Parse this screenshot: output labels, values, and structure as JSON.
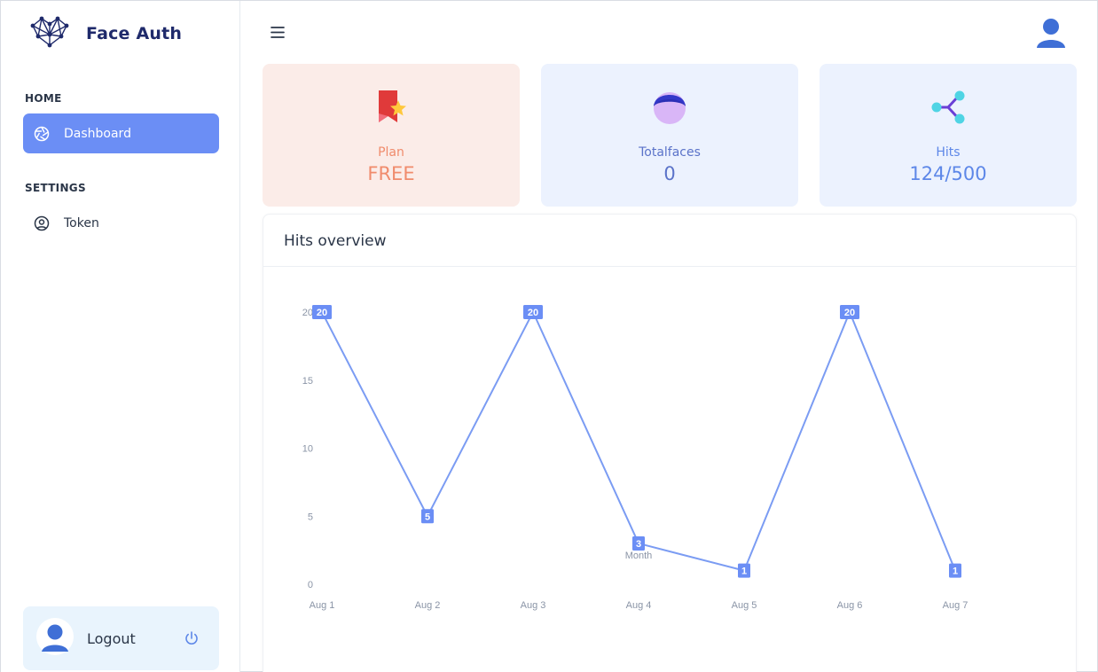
{
  "brand": {
    "name": "Face Auth"
  },
  "sidebar": {
    "sections": [
      {
        "caption": "HOME",
        "items": [
          {
            "label": "Dashboard",
            "icon": "aperture-icon",
            "active": true
          }
        ]
      },
      {
        "caption": "SETTINGS",
        "items": [
          {
            "label": "Token",
            "icon": "user-circle-icon",
            "active": false
          }
        ]
      }
    ],
    "logout": {
      "label": "Logout",
      "icon": "power-icon"
    }
  },
  "header": {
    "menu_icon": "hamburger-icon",
    "avatar_icon": "user-avatar-icon"
  },
  "stats": [
    {
      "label": "Plan",
      "value": "FREE",
      "icon": "bookmark-star-icon"
    },
    {
      "label": "Totalfaces",
      "value": "0",
      "icon": "face-icon"
    },
    {
      "label": "Hits",
      "value": "124/500",
      "icon": "share-nodes-icon"
    }
  ],
  "panel": {
    "title": "Hits overview"
  },
  "chart_data": {
    "type": "line",
    "categories": [
      "Aug 1",
      "Aug 2",
      "Aug 3",
      "Aug 4",
      "Aug 5",
      "Aug 6",
      "Aug 7"
    ],
    "series": [
      {
        "values": [
          20,
          5,
          20,
          3,
          1,
          20,
          1
        ]
      }
    ],
    "ylim": [
      0,
      20
    ],
    "yticks": [
      0,
      5,
      10,
      15,
      20
    ],
    "xlabel": "Month",
    "data_labels": true,
    "grid": false,
    "line_color": "#7b9cf3"
  },
  "colors": {
    "accent": "#6b8ef5",
    "plan": "#f08b6c",
    "faces": "#5b73c9",
    "hits": "#5d87e8"
  }
}
